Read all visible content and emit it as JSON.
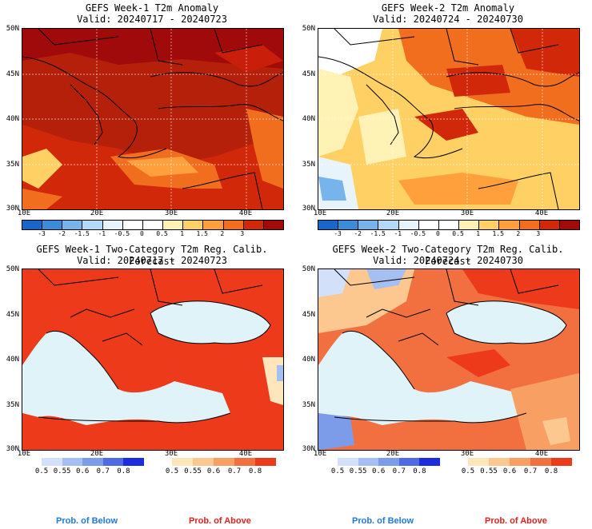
{
  "panels": [
    {
      "line1": "GEFS Week-1 T2m Anomaly",
      "line2": "Valid: 20240717 - 20240723"
    },
    {
      "line1": "GEFS Week-2 T2m Anomaly",
      "line2": "Valid: 20240724 - 20240730"
    },
    {
      "line1": "GEFS Week-1 Two-Category T2m Reg. Calib. Forecast",
      "line2": "Valid: 20240717 - 20240723"
    },
    {
      "line1": "GEFS Week-2 Two-Category T2m Reg. Calib. Forecast",
      "line2": "Valid: 20240724 - 20240730"
    }
  ],
  "lat_labels": [
    "50N",
    "45N",
    "40N",
    "35N",
    "30N"
  ],
  "lon_labels": [
    "10E",
    "20E",
    "30E",
    "40E"
  ],
  "anomaly_colorbar": {
    "colors": [
      "#1a66c8",
      "#3c8cdc",
      "#78b4ec",
      "#b4d8f8",
      "#e8f4fc",
      "#ffffff",
      "#ffffff",
      "#fff2b4",
      "#ffd064",
      "#ffa03c",
      "#f06e1e",
      "#d2280a",
      "#a00a0a"
    ],
    "ticks": [
      "-3",
      "-2",
      "-1.5",
      "-1",
      "-0.5",
      "0",
      "0.5",
      "1",
      "1.5",
      "2",
      "3"
    ]
  },
  "prob_below": {
    "colors": [
      "#d2e0fa",
      "#a6bff2",
      "#7c9cea",
      "#4e6ae4",
      "#1e2ce0"
    ],
    "ticks": [
      "0.5",
      "0.55",
      "0.6",
      "0.7",
      "0.8"
    ],
    "label": "Prob. of Below",
    "label_color": "#1e78e6"
  },
  "prob_above": {
    "colors": [
      "#fde6bc",
      "#fcc890",
      "#f8a064",
      "#f27040",
      "#ec3a1a"
    ],
    "ticks": [
      "0.5",
      "0.55",
      "0.6",
      "0.7",
      "0.8"
    ],
    "label": "Prob. of Above",
    "label_color": "#e61e1e"
  },
  "legend_labels": {
    "below_left": "Prob. of Below",
    "above_left": "Prob. of Above",
    "below_right": "Prob. of Below",
    "above_right": "Prob. of Above"
  }
}
